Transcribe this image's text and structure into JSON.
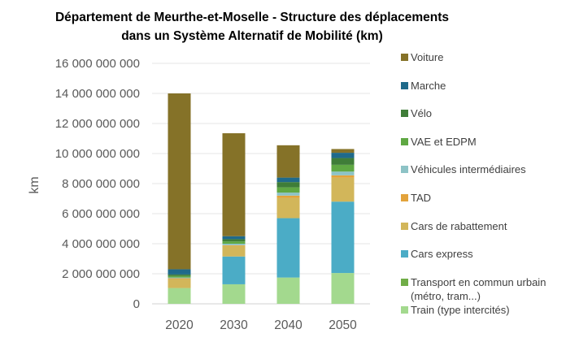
{
  "chart_data": {
    "type": "bar",
    "stacked": true,
    "title_line1": "Département de Meurthe-et-Moselle - Structure des déplacements",
    "title_line2": "dans un Système Alternatif de Mobilité (km)",
    "ylabel": "km",
    "ylim": [
      0,
      16000000000
    ],
    "yticks": [
      "0",
      "2 000 000 000",
      "4 000 000 000",
      "6 000 000 000",
      "8 000 000 000",
      "10 000 000 000",
      "12 000 000 000",
      "14 000 000 000",
      "16 000 000 000"
    ],
    "categories": [
      "2020",
      "2030",
      "2040",
      "2050"
    ],
    "grid": true,
    "legend_position": "right",
    "series": [
      {
        "name": "Train (type intercités)",
        "color": "#a3d98e",
        "values": [
          1050000000,
          1300000000,
          1750000000,
          2050000000
        ]
      },
      {
        "name": "Transport en commun urbain (métro, tram...)",
        "color": "#70ad47",
        "values": [
          0,
          0,
          0,
          0
        ]
      },
      {
        "name": "Cars express",
        "color": "#4bacc6",
        "values": [
          0,
          1850000000,
          3950000000,
          4750000000
        ]
      },
      {
        "name": "Cars de rabattement",
        "color": "#d2b65a",
        "values": [
          600000000,
          700000000,
          1350000000,
          1600000000
        ]
      },
      {
        "name": "TAD",
        "color": "#e3a33b",
        "values": [
          50000000,
          50000000,
          150000000,
          150000000
        ]
      },
      {
        "name": "Véhicules intermédiaires",
        "color": "#8dc3c6",
        "values": [
          50000000,
          100000000,
          200000000,
          250000000
        ]
      },
      {
        "name": "VAE et EDPM",
        "color": "#5fa843",
        "values": [
          100000000,
          150000000,
          350000000,
          450000000
        ]
      },
      {
        "name": "Vélo",
        "color": "#3f7d38",
        "values": [
          100000000,
          150000000,
          350000000,
          450000000
        ]
      },
      {
        "name": "Marche",
        "color": "#1f6a8a",
        "values": [
          350000000,
          200000000,
          300000000,
          350000000
        ]
      },
      {
        "name": "Voiture",
        "color": "#857228",
        "values": [
          11700000000,
          6850000000,
          2150000000,
          250000000
        ]
      }
    ]
  }
}
